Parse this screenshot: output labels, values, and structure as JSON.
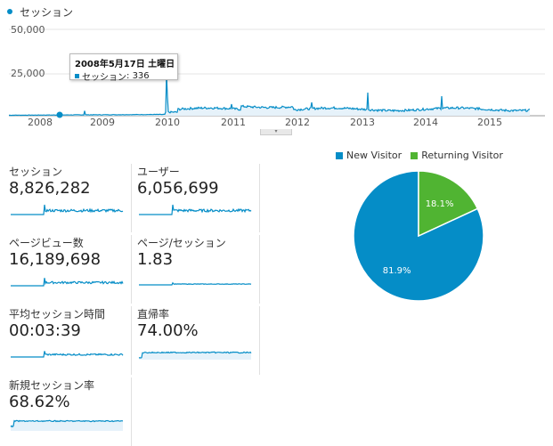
{
  "timeline": {
    "metric_label": "セッション",
    "y_ticks": [
      "50,000",
      "25,000"
    ],
    "x_ticks": [
      "2008",
      "2009",
      "2010",
      "2011",
      "2012",
      "2013",
      "2014",
      "2015"
    ],
    "tooltip": {
      "date": "2008年5月17日 土曜日",
      "series": "セッション",
      "value": "336"
    },
    "color": "#058dc7"
  },
  "tiles": [
    {
      "label": "セッション",
      "value": "8,826,282"
    },
    {
      "label": "ユーザー",
      "value": "6,056,699"
    },
    {
      "label": "ページビュー数",
      "value": "16,189,698"
    },
    {
      "label": "ページ/セッション",
      "value": "1.83"
    },
    {
      "label": "平均セッション時間",
      "value": "00:03:39"
    },
    {
      "label": "直帰率",
      "value": "74.00%"
    },
    {
      "label": "新規セッション率",
      "value": "68.62%"
    }
  ],
  "chart_data": {
    "type": "pie",
    "categories": [
      "New Visitor",
      "Returning Visitor"
    ],
    "values": [
      81.9,
      18.1
    ],
    "value_labels": [
      "81.9%",
      "18.1%"
    ],
    "colors": [
      "#058dc7",
      "#50b432"
    ],
    "legend": "top"
  }
}
